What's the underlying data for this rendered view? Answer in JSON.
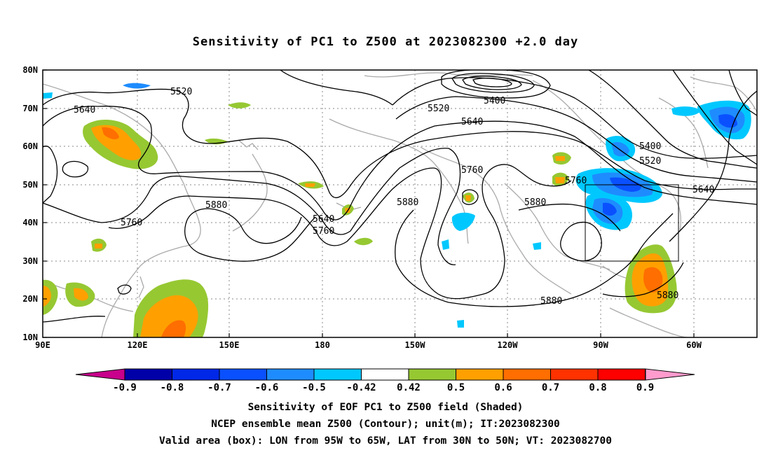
{
  "title": "Sensitivity of PC1 to Z500 at 2023082300 +2.0 day",
  "lat_labels": [
    "80N",
    "70N",
    "60N",
    "50N",
    "40N",
    "30N",
    "20N",
    "10N"
  ],
  "lon_labels": [
    "90E",
    "120E",
    "150E",
    "180",
    "150W",
    "120W",
    "90W",
    "60W"
  ],
  "contour_labels": [
    "5520",
    "5400",
    "5520",
    "5640",
    "5640",
    "5760",
    "5400",
    "5520",
    "5760",
    "5880",
    "5880",
    "5640",
    "5640",
    "5760",
    "5760",
    "5880",
    "5880",
    "5880"
  ],
  "valid_box": {
    "lon_min": "95W",
    "lon_max": "65W",
    "lat_min": "30N",
    "lat_max": "50N"
  },
  "colorbar": {
    "labels": [
      "-0.9",
      "-0.8",
      "-0.7",
      "-0.6",
      "-0.5",
      "-0.42",
      "0.42",
      "0.5",
      "0.6",
      "0.7",
      "0.8",
      "0.9"
    ],
    "colors": [
      "#0000a8",
      "#0028e6",
      "#0a50ff",
      "#1e8cff",
      "#00c8ff",
      "#ffffff",
      "#96c832",
      "#ffa000",
      "#ff6e00",
      "#ff3200",
      "#ff0000"
    ],
    "low_extend_color": "#c8008c",
    "high_extend_color": "#ff9bcd"
  },
  "captions": [
    "Sensitivity of EOF PC1 to Z500 field (Shaded)",
    "NCEP ensemble mean Z500 (Contour); unit(m); IT:2023082300",
    "Valid area (box): LON from 95W to 65W, LAT from 30N to 50N; VT: 2023082700"
  ]
}
